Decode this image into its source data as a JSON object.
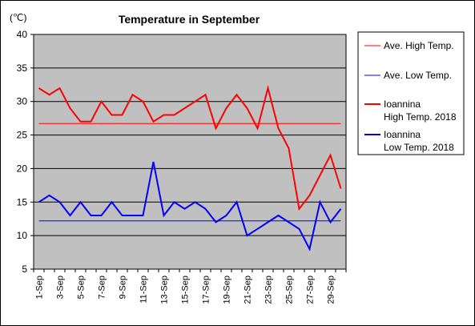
{
  "chart_data": {
    "type": "line",
    "title": "Temperature in September",
    "unit_label": "(℃)",
    "ylim": [
      5,
      40
    ],
    "y_ticks": [
      5,
      10,
      15,
      20,
      25,
      30,
      35,
      40
    ],
    "x": [
      1,
      2,
      3,
      4,
      5,
      6,
      7,
      8,
      9,
      10,
      11,
      12,
      13,
      14,
      15,
      16,
      17,
      18,
      19,
      20,
      21,
      22,
      23,
      24,
      25,
      26,
      27,
      28,
      29,
      30
    ],
    "x_tick_labels": [
      "1-Sep",
      "3-Sep",
      "5-Sep",
      "7-Sep",
      "9-Sep",
      "11-Sep",
      "13-Sep",
      "15-Sep",
      "17-Sep",
      "19-Sep",
      "21-Sep",
      "23-Sep",
      "25-Sep",
      "27-Sep",
      "29-Sep"
    ],
    "grid": true,
    "legend_position": "right",
    "plot_background": "#c0c0c0",
    "series": [
      {
        "name": "Ave. High Temp.",
        "legend_lines": [
          "Ave. High Temp."
        ],
        "color": "#ff0000",
        "stroke": "thin",
        "values": [
          26.7,
          26.7,
          26.7,
          26.7,
          26.7,
          26.7,
          26.7,
          26.7,
          26.7,
          26.7,
          26.7,
          26.7,
          26.7,
          26.7,
          26.7,
          26.7,
          26.7,
          26.7,
          26.7,
          26.7,
          26.7,
          26.7,
          26.7,
          26.7,
          26.7,
          26.7,
          26.7,
          26.7,
          26.7,
          26.7
        ]
      },
      {
        "name": "Ave. Low Temp.",
        "legend_lines": [
          "Ave. Low Temp."
        ],
        "color": "#0000ff",
        "stroke": "thin",
        "values": [
          12.2,
          12.2,
          12.2,
          12.2,
          12.2,
          12.2,
          12.2,
          12.2,
          12.2,
          12.2,
          12.2,
          12.2,
          12.2,
          12.2,
          12.2,
          12.2,
          12.2,
          12.2,
          12.2,
          12.2,
          12.2,
          12.2,
          12.2,
          12.2,
          12.2,
          12.2,
          12.2,
          12.2,
          12.2,
          12.2
        ]
      },
      {
        "name": "Ioannina High Temp. 2018",
        "legend_lines": [
          "Ioannina",
          "High Temp. 2018"
        ],
        "color": "#ff0000",
        "stroke": "thick",
        "values": [
          32,
          31,
          32,
          29,
          27,
          27,
          30,
          28,
          28,
          31,
          30,
          27,
          28,
          28,
          29,
          30,
          31,
          26,
          29,
          31,
          29,
          26,
          32,
          26,
          23,
          14,
          16,
          19,
          22,
          17
        ]
      },
      {
        "name": "Ioannina Low Temp. 2018",
        "legend_lines": [
          "Ioannina",
          "Low Temp. 2018"
        ],
        "color": "#0000ff",
        "stroke": "thick",
        "values": [
          15,
          16,
          15,
          13,
          15,
          13,
          13,
          15,
          13,
          13,
          13,
          21,
          13,
          15,
          14,
          15,
          14,
          12,
          13,
          15,
          10,
          11,
          12,
          13,
          12,
          11,
          8,
          15,
          12,
          14
        ]
      }
    ]
  }
}
